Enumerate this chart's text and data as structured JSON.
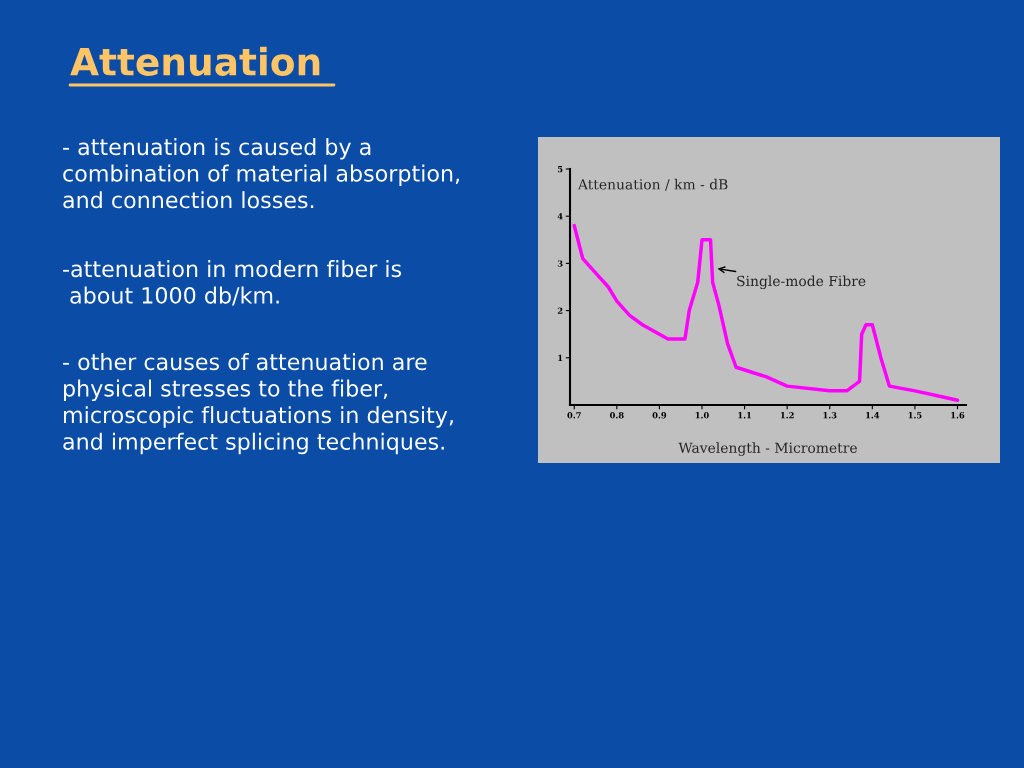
{
  "chart_data": {
    "type": "line",
    "title": "Attenuation",
    "ylabel": "Attenuation / km - dB",
    "xlabel": "Wavelength - Micrometre",
    "x": [
      0.7,
      0.72,
      0.75,
      0.78,
      0.8,
      0.83,
      0.86,
      0.9,
      0.92,
      0.96,
      0.97,
      0.99,
      1.0,
      1.02,
      1.025,
      1.04,
      1.06,
      1.08,
      1.15,
      1.2,
      1.3,
      1.34,
      1.37,
      1.375,
      1.385,
      1.4,
      1.42,
      1.44,
      1.5,
      1.55,
      1.6
    ],
    "series": [
      {
        "color": "#ff00ff",
        "values": [
          3.8,
          3.1,
          2.8,
          2.5,
          2.2,
          1.9,
          1.7,
          1.5,
          1.4,
          1.4,
          2.0,
          2.6,
          3.5,
          3.5,
          2.6,
          2.1,
          1.3,
          0.8,
          0.6,
          0.4,
          0.3,
          0.3,
          0.5,
          1.5,
          1.7,
          1.7,
          1.0,
          0.4,
          0.3,
          0.2,
          0.1
        ]
      }
    ],
    "xlim": [
      0.69,
      1.62
    ],
    "ylim": [
      0,
      5
    ],
    "xticks": [
      0.7,
      0.8,
      0.9,
      {
        "value": 1,
        "label": "1.0"
      },
      1.1,
      1.2,
      1.3,
      1.4,
      1.5,
      1.6
    ],
    "yticks": [
      1,
      2,
      3,
      4,
      5
    ],
    "grid": false,
    "legend": false,
    "marker": "none",
    "line_style": "solid",
    "annotations": [
      {
        "text": "Single-mode Fibre",
        "x": 1.03,
        "y": 2.9
      },
      "- attenuation is caused by a\ncombination of material absorption,\nand connection losses.",
      "-attenuation in modern fiber is\n about 1000 db/km.",
      "- other causes of attenuation are\nphysical stresses to the fiber,\nmicroscopic fluctuations in density,\nand imperfect splicing techniques."
    ]
  }
}
